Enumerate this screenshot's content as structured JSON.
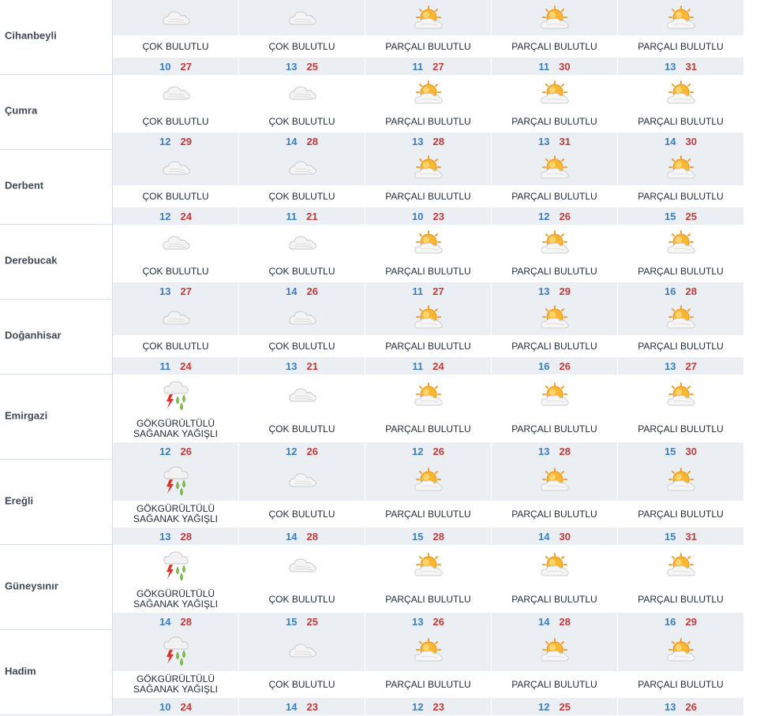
{
  "rows": [
    {
      "city": "Cihanbeyli",
      "days": [
        {
          "icon": "cloudy-icon",
          "condition": "ÇOK BULUTLU",
          "min": "10",
          "max": "27"
        },
        {
          "icon": "cloudy-icon",
          "condition": "ÇOK BULUTLU",
          "min": "13",
          "max": "25"
        },
        {
          "icon": "partly-cloudy-icon",
          "condition": "PARÇALI BULUTLU",
          "min": "11",
          "max": "27"
        },
        {
          "icon": "partly-cloudy-icon",
          "condition": "PARÇALI BULUTLU",
          "min": "11",
          "max": "30"
        },
        {
          "icon": "partly-cloudy-icon",
          "condition": "PARÇALI BULUTLU",
          "min": "13",
          "max": "31"
        }
      ]
    },
    {
      "city": "Çumra",
      "days": [
        {
          "icon": "cloudy-icon",
          "condition": "ÇOK BULUTLU",
          "min": "12",
          "max": "29"
        },
        {
          "icon": "cloudy-icon",
          "condition": "ÇOK BULUTLU",
          "min": "14",
          "max": "28"
        },
        {
          "icon": "partly-cloudy-icon",
          "condition": "PARÇALI BULUTLU",
          "min": "13",
          "max": "28"
        },
        {
          "icon": "partly-cloudy-icon",
          "condition": "PARÇALI BULUTLU",
          "min": "13",
          "max": "31"
        },
        {
          "icon": "partly-cloudy-icon",
          "condition": "PARÇALI BULUTLU",
          "min": "14",
          "max": "30"
        }
      ]
    },
    {
      "city": "Derbent",
      "days": [
        {
          "icon": "cloudy-icon",
          "condition": "ÇOK BULUTLU",
          "min": "12",
          "max": "24"
        },
        {
          "icon": "cloudy-icon",
          "condition": "ÇOK BULUTLU",
          "min": "11",
          "max": "21"
        },
        {
          "icon": "partly-cloudy-icon",
          "condition": "PARÇALI BULUTLU",
          "min": "10",
          "max": "23"
        },
        {
          "icon": "partly-cloudy-icon",
          "condition": "PARÇALI BULUTLU",
          "min": "12",
          "max": "26"
        },
        {
          "icon": "partly-cloudy-icon",
          "condition": "PARÇALI BULUTLU",
          "min": "15",
          "max": "25"
        }
      ]
    },
    {
      "city": "Derebucak",
      "days": [
        {
          "icon": "cloudy-icon",
          "condition": "ÇOK BULUTLU",
          "min": "13",
          "max": "27"
        },
        {
          "icon": "cloudy-icon",
          "condition": "ÇOK BULUTLU",
          "min": "14",
          "max": "26"
        },
        {
          "icon": "partly-cloudy-icon",
          "condition": "PARÇALI BULUTLU",
          "min": "11",
          "max": "27"
        },
        {
          "icon": "partly-cloudy-icon",
          "condition": "PARÇALI BULUTLU",
          "min": "13",
          "max": "29"
        },
        {
          "icon": "partly-cloudy-icon",
          "condition": "PARÇALI BULUTLU",
          "min": "16",
          "max": "28"
        }
      ]
    },
    {
      "city": "Doğanhisar",
      "days": [
        {
          "icon": "cloudy-icon",
          "condition": "ÇOK BULUTLU",
          "min": "11",
          "max": "24"
        },
        {
          "icon": "cloudy-icon",
          "condition": "ÇOK BULUTLU",
          "min": "13",
          "max": "21"
        },
        {
          "icon": "partly-cloudy-icon",
          "condition": "PARÇALI BULUTLU",
          "min": "11",
          "max": "24"
        },
        {
          "icon": "partly-cloudy-icon",
          "condition": "PARÇALI BULUTLU",
          "min": "16",
          "max": "26"
        },
        {
          "icon": "partly-cloudy-icon",
          "condition": "PARÇALI BULUTLU",
          "min": "13",
          "max": "27"
        }
      ]
    },
    {
      "city": "Emirgazi",
      "days": [
        {
          "icon": "thunderstorm-icon",
          "condition": "GÖKGÜRÜLTÜLÜ SAĞANAK YAĞIŞLI",
          "min": "12",
          "max": "26"
        },
        {
          "icon": "cloudy-icon",
          "condition": "ÇOK BULUTLU",
          "min": "12",
          "max": "26"
        },
        {
          "icon": "partly-cloudy-icon",
          "condition": "PARÇALI BULUTLU",
          "min": "12",
          "max": "26"
        },
        {
          "icon": "partly-cloudy-icon",
          "condition": "PARÇALI BULUTLU",
          "min": "13",
          "max": "28"
        },
        {
          "icon": "partly-cloudy-icon",
          "condition": "PARÇALI BULUTLU",
          "min": "15",
          "max": "30"
        }
      ]
    },
    {
      "city": "Ereğli",
      "days": [
        {
          "icon": "thunderstorm-icon",
          "condition": "GÖKGÜRÜLTÜLÜ SAĞANAK YAĞIŞLI",
          "min": "13",
          "max": "28"
        },
        {
          "icon": "cloudy-icon",
          "condition": "ÇOK BULUTLU",
          "min": "14",
          "max": "28"
        },
        {
          "icon": "partly-cloudy-icon",
          "condition": "PARÇALI BULUTLU",
          "min": "15",
          "max": "28"
        },
        {
          "icon": "partly-cloudy-icon",
          "condition": "PARÇALI BULUTLU",
          "min": "14",
          "max": "30"
        },
        {
          "icon": "partly-cloudy-icon",
          "condition": "PARÇALI BULUTLU",
          "min": "15",
          "max": "31"
        }
      ]
    },
    {
      "city": "Güneysınır",
      "days": [
        {
          "icon": "thunderstorm-icon",
          "condition": "GÖKGÜRÜLTÜLÜ SAĞANAK YAĞIŞLI",
          "min": "14",
          "max": "28"
        },
        {
          "icon": "cloudy-icon",
          "condition": "ÇOK BULUTLU",
          "min": "15",
          "max": "25"
        },
        {
          "icon": "partly-cloudy-icon",
          "condition": "PARÇALI BULUTLU",
          "min": "13",
          "max": "26"
        },
        {
          "icon": "partly-cloudy-icon",
          "condition": "PARÇALI BULUTLU",
          "min": "14",
          "max": "28"
        },
        {
          "icon": "partly-cloudy-icon",
          "condition": "PARÇALI BULUTLU",
          "min": "16",
          "max": "29"
        }
      ]
    },
    {
      "city": "Hadim",
      "days": [
        {
          "icon": "thunderstorm-icon",
          "condition": "GÖKGÜRÜLTÜLÜ SAĞANAK YAĞIŞLI",
          "min": "10",
          "max": "24"
        },
        {
          "icon": "cloudy-icon",
          "condition": "ÇOK BULUTLU",
          "min": "14",
          "max": "23"
        },
        {
          "icon": "partly-cloudy-icon",
          "condition": "PARÇALI BULUTLU",
          "min": "12",
          "max": "23"
        },
        {
          "icon": "partly-cloudy-icon",
          "condition": "PARÇALI BULUTLU",
          "min": "12",
          "max": "25"
        },
        {
          "icon": "partly-cloudy-icon",
          "condition": "PARÇALI BULUTLU",
          "min": "13",
          "max": "26"
        }
      ]
    }
  ],
  "colors": {
    "min_temp": "#3d7ec0",
    "max_temp": "#c23a3a",
    "row_shade": "#ebeef2",
    "city_text": "#3f4a57"
  }
}
